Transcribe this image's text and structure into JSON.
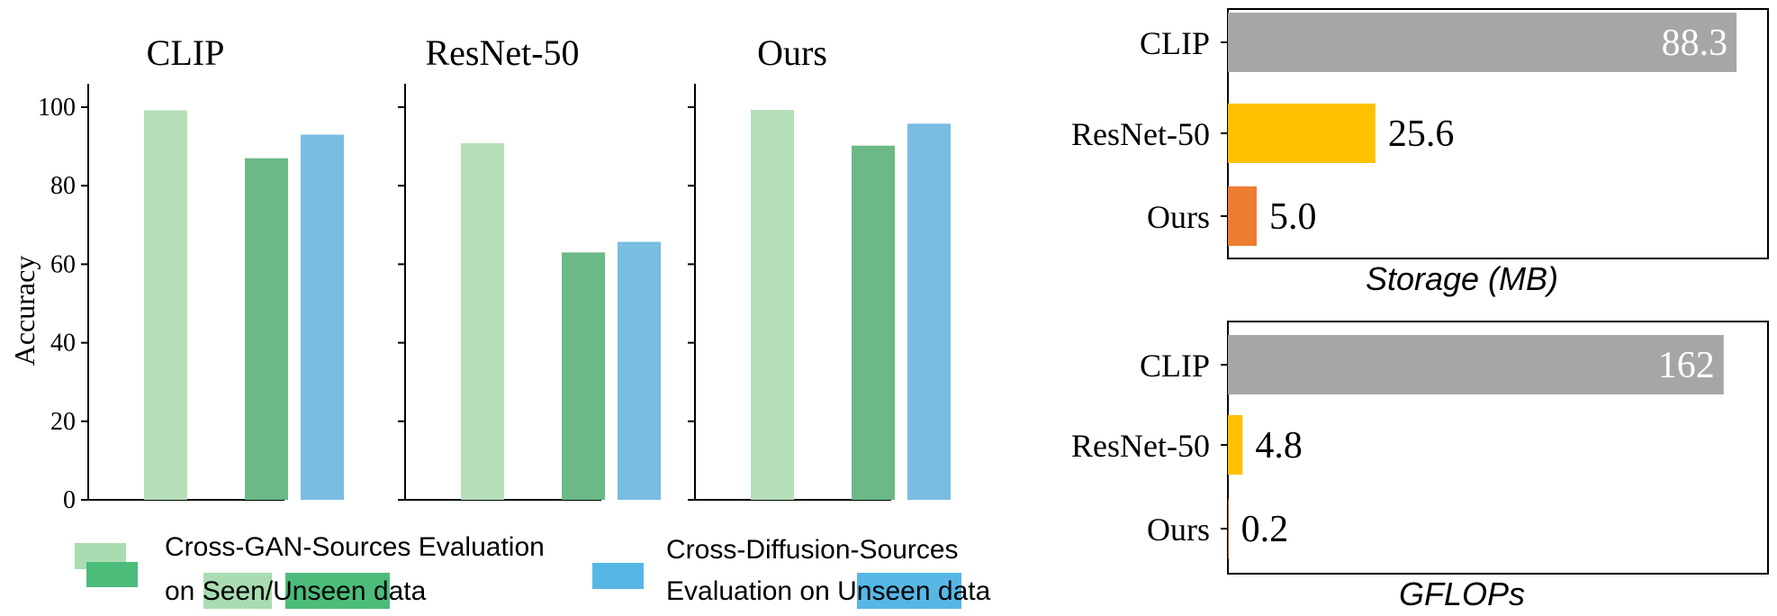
{
  "colors": {
    "gan_seen": "#b5dfb8",
    "gan_unseen": "#6bb986",
    "diffusion_unseen": "#79bde3",
    "legend_gan_back": "#a9dcb0",
    "legend_gan_front": "#4cbc7b",
    "legend_diffusion": "#56b7e6",
    "bar_clip": "#a6a6a6",
    "bar_resnet": "#ffc000",
    "bar_ours": "#ed7d31",
    "axis": "#000000"
  },
  "chart_data": [
    {
      "type": "bar",
      "title": "CLIP",
      "ylabel": "Accuracy",
      "ylim": [
        0,
        105
      ],
      "yticks": [
        "0",
        "20",
        "40",
        "60",
        "80",
        "100"
      ],
      "series": [
        {
          "values": [
            99.2
          ]
        },
        {
          "values": [
            87.0
          ]
        },
        {
          "values": [
            93.0
          ]
        }
      ]
    },
    {
      "type": "bar",
      "title": "ResNet-50",
      "ylim": [
        0,
        105
      ],
      "series": [
        {
          "values": [
            90.8
          ]
        },
        {
          "values": [
            63.0
          ]
        },
        {
          "values": [
            65.7
          ]
        }
      ]
    },
    {
      "type": "bar",
      "title": "Ours",
      "ylim": [
        0,
        105
      ],
      "series": [
        {
          "values": [
            99.3
          ]
        },
        {
          "values": [
            90.2
          ]
        },
        {
          "values": [
            95.8
          ]
        }
      ]
    },
    {
      "type": "bar",
      "orientation": "horizontal",
      "xlabel": "Storage (MB)",
      "categories": [
        "CLIP",
        "ResNet-50",
        "Ours"
      ],
      "values": [
        88.3,
        25.6,
        5.0
      ],
      "value_labels": [
        "88.3",
        "25.6",
        "5.0"
      ],
      "xlim": [
        0,
        90
      ]
    },
    {
      "type": "bar",
      "orientation": "horizontal",
      "xlabel": "GFLOPs",
      "categories": [
        "CLIP",
        "ResNet-50",
        "Ours"
      ],
      "values": [
        162,
        4.8,
        0.2
      ],
      "value_labels": [
        "162",
        "4.8",
        "0.2"
      ],
      "xlim": [
        0,
        166
      ]
    }
  ],
  "legend": {
    "gan_line1": "Cross-GAN-Sources Evaluation",
    "gan_line2_prefix": "on ",
    "gan_seen_word": "Seen",
    "gan_slash": "/",
    "gan_unseen_word": "Unseen",
    "gan_line2_suffix": " data",
    "diff_line1": "Cross-Diffusion-Sources",
    "diff_line2_prefix": "Evaluation on ",
    "diff_unseen_word": "Unseen",
    "diff_line2_suffix": " data"
  }
}
